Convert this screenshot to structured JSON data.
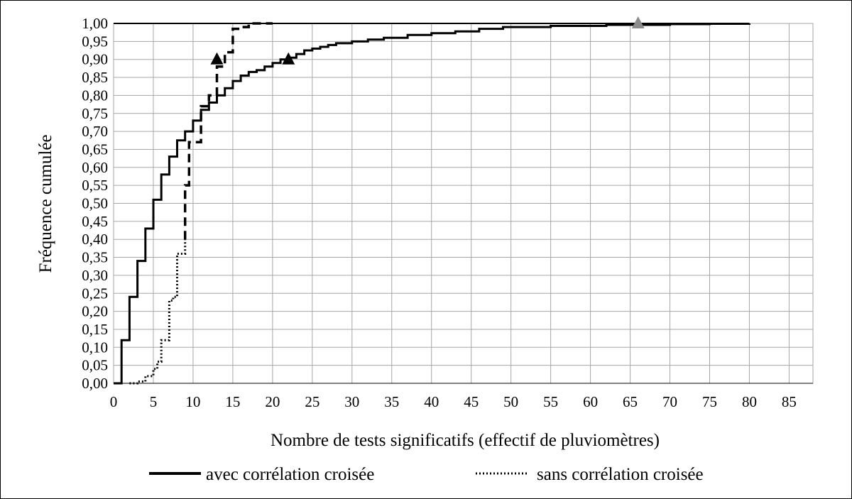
{
  "chart_data": {
    "type": "line",
    "title": "",
    "xlabel": "Nombre de tests significatifs (effectif de pluviomètres)",
    "ylabel": "Fréquence cumulée",
    "xlim": [
      0,
      88
    ],
    "ylim": [
      0,
      1
    ],
    "x_ticks": [
      0,
      5,
      10,
      15,
      20,
      25,
      30,
      35,
      40,
      45,
      50,
      55,
      60,
      65,
      70,
      75,
      80,
      85
    ],
    "y_ticks": [
      "0,00",
      "0,05",
      "0,10",
      "0,15",
      "0,20",
      "0,25",
      "0,30",
      "0,35",
      "0,40",
      "0,45",
      "0,50",
      "0,55",
      "0,60",
      "0,65",
      "0,70",
      "0,75",
      "0,80",
      "0,85",
      "0,90",
      "0,95",
      "1,00"
    ],
    "grid": true,
    "legend_position": "bottom",
    "legend": [
      {
        "label": "avec corrélation croisée",
        "style": "solid"
      },
      {
        "label": "sans corrélation croisée",
        "style": "dotted"
      }
    ],
    "series": [
      {
        "style": "solid",
        "points": [
          [
            0,
            0.0
          ],
          [
            1,
            0.0
          ],
          [
            1,
            0.12
          ],
          [
            2,
            0.12
          ],
          [
            2,
            0.24
          ],
          [
            3,
            0.24
          ],
          [
            3,
            0.34
          ],
          [
            4,
            0.34
          ],
          [
            4,
            0.43
          ],
          [
            5,
            0.43
          ],
          [
            5,
            0.51
          ],
          [
            6,
            0.51
          ],
          [
            6,
            0.58
          ],
          [
            7,
            0.58
          ],
          [
            7,
            0.63
          ],
          [
            8,
            0.63
          ],
          [
            8,
            0.675
          ],
          [
            9,
            0.675
          ],
          [
            9,
            0.7
          ],
          [
            10,
            0.7
          ],
          [
            10,
            0.73
          ],
          [
            11,
            0.73
          ],
          [
            11,
            0.76
          ],
          [
            12,
            0.76
          ],
          [
            12,
            0.78
          ],
          [
            13,
            0.78
          ],
          [
            13,
            0.8
          ],
          [
            14,
            0.8
          ],
          [
            14,
            0.82
          ],
          [
            15,
            0.82
          ],
          [
            15,
            0.84
          ],
          [
            16,
            0.84
          ],
          [
            16,
            0.855
          ],
          [
            17,
            0.855
          ],
          [
            17,
            0.865
          ],
          [
            18,
            0.865
          ],
          [
            18,
            0.87
          ],
          [
            19,
            0.87
          ],
          [
            19,
            0.88
          ],
          [
            20,
            0.88
          ],
          [
            20,
            0.89
          ],
          [
            21,
            0.89
          ],
          [
            21,
            0.9
          ],
          [
            22,
            0.9
          ],
          [
            22,
            0.905
          ],
          [
            23,
            0.905
          ],
          [
            23,
            0.915
          ],
          [
            24,
            0.915
          ],
          [
            24,
            0.925
          ],
          [
            25,
            0.925
          ],
          [
            25,
            0.93
          ],
          [
            26,
            0.93
          ],
          [
            26,
            0.935
          ],
          [
            27,
            0.935
          ],
          [
            27,
            0.94
          ],
          [
            28,
            0.94
          ],
          [
            28,
            0.945
          ],
          [
            30,
            0.945
          ],
          [
            30,
            0.95
          ],
          [
            32,
            0.95
          ],
          [
            32,
            0.955
          ],
          [
            34,
            0.955
          ],
          [
            34,
            0.96
          ],
          [
            37,
            0.96
          ],
          [
            37,
            0.968
          ],
          [
            40,
            0.968
          ],
          [
            40,
            0.973
          ],
          [
            43,
            0.973
          ],
          [
            43,
            0.978
          ],
          [
            46,
            0.978
          ],
          [
            46,
            0.985
          ],
          [
            49,
            0.985
          ],
          [
            49,
            0.99
          ],
          [
            55,
            0.99
          ],
          [
            55,
            0.993
          ],
          [
            62,
            0.993
          ],
          [
            62,
            0.996
          ],
          [
            70,
            0.996
          ],
          [
            70,
            0.998
          ],
          [
            75,
            0.998
          ],
          [
            75,
            0.999
          ],
          [
            80,
            0.999
          ],
          [
            80,
            1.0
          ]
        ]
      },
      {
        "style": "dotted",
        "points": [
          [
            2,
            0.0
          ],
          [
            3,
            0.0
          ],
          [
            3,
            0.005
          ],
          [
            4,
            0.005
          ],
          [
            4,
            0.02
          ],
          [
            5,
            0.02
          ],
          [
            5,
            0.04
          ],
          [
            5.5,
            0.04
          ],
          [
            5.5,
            0.06
          ],
          [
            6,
            0.06
          ],
          [
            6,
            0.12
          ],
          [
            7,
            0.12
          ],
          [
            7,
            0.23
          ],
          [
            7.5,
            0.23
          ],
          [
            7.5,
            0.24
          ],
          [
            8,
            0.24
          ],
          [
            8,
            0.36
          ],
          [
            9,
            0.36
          ],
          [
            9,
            0.4
          ]
        ]
      },
      {
        "style": "dashed",
        "points": [
          [
            9,
            0.4
          ],
          [
            9,
            0.55
          ],
          [
            9.5,
            0.55
          ],
          [
            9.5,
            0.67
          ],
          [
            11,
            0.67
          ],
          [
            11,
            0.77
          ],
          [
            12,
            0.77
          ],
          [
            12,
            0.8
          ],
          [
            13,
            0.8
          ],
          [
            13,
            0.88
          ],
          [
            14,
            0.88
          ],
          [
            14,
            0.92
          ],
          [
            15,
            0.92
          ],
          [
            15,
            0.985
          ],
          [
            16,
            0.985
          ],
          [
            16,
            0.99
          ],
          [
            17,
            0.99
          ],
          [
            17,
            1.0
          ],
          [
            20,
            1.0
          ]
        ]
      }
    ],
    "markers": [
      {
        "x": 13,
        "y": 0.9,
        "shape": "triangle",
        "color": "#000000"
      },
      {
        "x": 22,
        "y": 0.9,
        "shape": "triangle",
        "color": "#000000"
      },
      {
        "x": 66,
        "y": 1.0,
        "shape": "triangle",
        "color": "#8c8c8c"
      }
    ],
    "colors": {
      "line": "#000000",
      "grid": "#a6a6a6",
      "marker_grey": "#8c8c8c"
    }
  }
}
